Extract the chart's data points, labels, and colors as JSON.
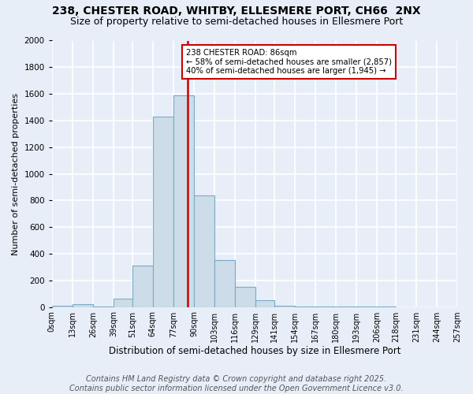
{
  "title": "238, CHESTER ROAD, WHITBY, ELLESMERE PORT, CH66  2NX",
  "subtitle": "Size of property relative to semi-detached houses in Ellesmere Port",
  "xlabel": "Distribution of semi-detached houses by size in Ellesmere Port",
  "ylabel": "Number of semi-detached properties",
  "bar_color": "#ccdce8",
  "bar_edge_color": "#7aaac8",
  "bg_color": "#e8eef8",
  "plot_bg_color": "#e8eef8",
  "grid_color": "#ffffff",
  "vline_x": 86,
  "vline_color": "#cc0000",
  "annotation_title": "238 CHESTER ROAD: 86sqm",
  "annotation_line1": "← 58% of semi-detached houses are smaller (2,857)",
  "annotation_line2": "40% of semi-detached houses are larger (1,945) →",
  "annotation_box_color": "#ffffff",
  "annotation_border_color": "#cc0000",
  "bins": [
    0,
    13,
    26,
    39,
    51,
    64,
    77,
    90,
    103,
    116,
    129,
    141,
    154,
    167,
    180,
    193,
    206,
    218,
    231,
    244,
    257
  ],
  "bin_labels": [
    "0sqm",
    "13sqm",
    "26sqm",
    "39sqm",
    "51sqm",
    "64sqm",
    "77sqm",
    "90sqm",
    "103sqm",
    "116sqm",
    "129sqm",
    "141sqm",
    "154sqm",
    "167sqm",
    "180sqm",
    "193sqm",
    "206sqm",
    "218sqm",
    "231sqm",
    "244sqm",
    "257sqm"
  ],
  "counts": [
    10,
    20,
    5,
    60,
    310,
    1430,
    1590,
    840,
    350,
    150,
    50,
    10,
    5,
    5,
    2,
    2,
    1,
    0,
    0,
    0
  ],
  "ylim": [
    0,
    2000
  ],
  "yticks": [
    0,
    200,
    400,
    600,
    800,
    1000,
    1200,
    1400,
    1600,
    1800,
    2000
  ],
  "footer": "Contains HM Land Registry data © Crown copyright and database right 2025.\nContains public sector information licensed under the Open Government Licence v3.0.",
  "title_fontsize": 10,
  "subtitle_fontsize": 9,
  "footer_fontsize": 7
}
